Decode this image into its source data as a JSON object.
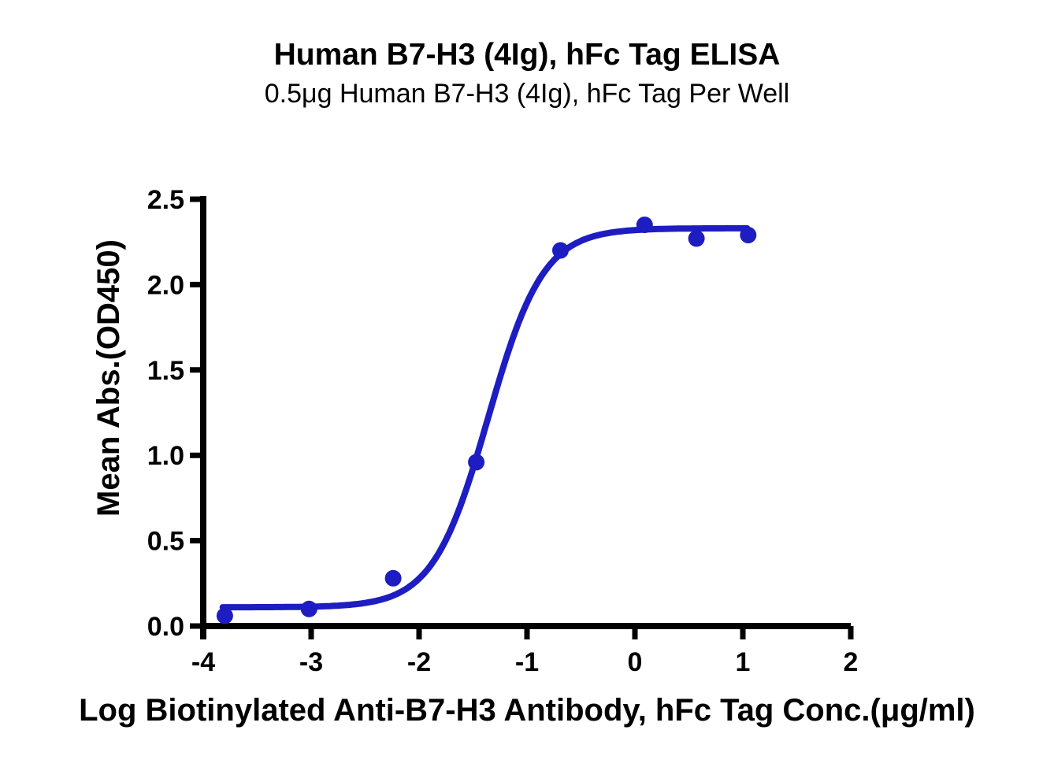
{
  "page": {
    "background_color": "#ffffff",
    "text_color": "#000000"
  },
  "chart_data": {
    "type": "scatter",
    "title": "Human B7-H3 (4Ig), hFc Tag ELISA",
    "subtitle": "0.5μg Human B7-H3 (4Ig), hFc Tag Per Well",
    "xlabel": "Log Biotinylated Anti-B7-H3 Antibody, hFc Tag Conc.(μg/ml)",
    "ylabel": "Mean Abs.(OD450)",
    "xlim": [
      -4,
      2
    ],
    "ylim": [
      0,
      2.5
    ],
    "xticks": [
      -4,
      -3,
      -2,
      -1,
      0,
      1,
      2
    ],
    "xtick_labels": [
      "-4",
      "-3",
      "-2",
      "-1",
      "0",
      "1",
      "2"
    ],
    "yticks": [
      0,
      0.5,
      1,
      1.5,
      2,
      2.5
    ],
    "ytick_labels": [
      "0.0",
      "0.5",
      "1.0",
      "1.5",
      "2.0",
      "2.5"
    ],
    "grid": false,
    "legend": false,
    "series": [
      {
        "name": "Human B7-H3 (4Ig), hFc Tag",
        "x": [
          -3.8,
          -3.02,
          -2.24,
          -1.47,
          -0.69,
          0.09,
          0.57,
          1.05
        ],
        "y": [
          0.06,
          0.1,
          0.28,
          0.96,
          2.2,
          2.35,
          2.27,
          2.29
        ]
      }
    ],
    "fit": {
      "model": "4PL sigmoidal dose-response",
      "bottom": 0.11,
      "top": 2.33,
      "logEC50": -1.36,
      "hill": 1.7,
      "x_start": -3.82,
      "x_end": 1.05
    },
    "colors": {
      "curve": "#1d1dc1",
      "points": "#1d1dc1",
      "axis": "#000000",
      "text": "#000000",
      "background": "#ffffff"
    }
  }
}
